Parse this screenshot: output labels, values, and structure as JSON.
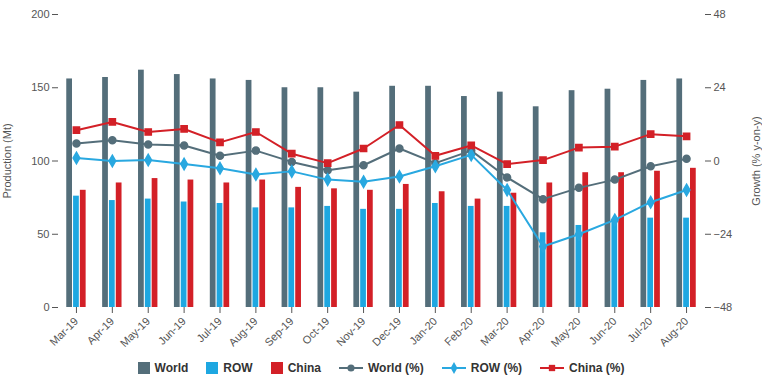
{
  "chart_data": {
    "type": "bar",
    "ylabel": "Production (Mt)",
    "y2label": "Growth (% y-on-y)",
    "categories": [
      "Mar-19",
      "Apr-19",
      "May-19",
      "Jun-19",
      "Jul-19",
      "Aug-19",
      "Sep-19",
      "Oct-19",
      "Nov-19",
      "Dec-19",
      "Jan-20",
      "Feb-20",
      "Mar-20",
      "Apr-20",
      "May-20",
      "Jun-20",
      "Jul-20",
      "Aug-20"
    ],
    "ylim": [
      0,
      200
    ],
    "yticks": [
      0,
      50,
      100,
      150,
      200
    ],
    "y2lim": [
      -48,
      48
    ],
    "y2ticks": [
      -48,
      -24,
      0,
      24,
      48
    ],
    "grid": false,
    "legend": "bottom",
    "series": [
      {
        "name": "World",
        "type": "bar",
        "color": "#546e7a",
        "values": [
          156,
          157,
          162,
          159,
          156,
          155,
          150,
          150,
          147,
          151,
          151,
          144,
          147,
          137,
          148,
          149,
          155,
          156
        ]
      },
      {
        "name": "ROW",
        "type": "bar",
        "color": "#1ea7e1",
        "values": [
          76,
          73,
          74,
          72,
          71,
          68,
          68,
          69,
          67,
          67,
          71,
          69,
          69,
          51,
          56,
          58,
          61,
          61
        ]
      },
      {
        "name": "China",
        "type": "bar",
        "color": "#d32027",
        "values": [
          80,
          85,
          88,
          87,
          85,
          87,
          82,
          81,
          80,
          84,
          79,
          74,
          78,
          85,
          92,
          92,
          93,
          95
        ]
      },
      {
        "name": "World (%)",
        "type": "line",
        "axis": "y2",
        "marker": "circle",
        "color": "#546e7a",
        "values": [
          5.7,
          6.8,
          5.4,
          5.1,
          1.7,
          3.4,
          -0.3,
          -3.0,
          -1.4,
          4.1,
          -0.7,
          3.4,
          -5.4,
          -12.5,
          -8.8,
          -6.1,
          -1.7,
          0.7
        ]
      },
      {
        "name": "ROW (%)",
        "type": "line",
        "axis": "y2",
        "marker": "diamond",
        "color": "#29a8e0",
        "values": [
          1.0,
          0,
          0.3,
          -1.0,
          -2.4,
          -4.4,
          -3.4,
          -6.1,
          -6.8,
          -5.1,
          -1.7,
          2.0,
          -9.5,
          -28,
          -24,
          -19.3,
          -13.5,
          -9.5
        ]
      },
      {
        "name": "China (%)",
        "type": "line",
        "axis": "y2",
        "marker": "square",
        "color": "#d32027",
        "values": [
          10.1,
          12.8,
          9.5,
          10.5,
          6.1,
          9.5,
          2.4,
          -0.7,
          4.1,
          11.8,
          1.7,
          5.1,
          -1.0,
          0.3,
          4.4,
          4.7,
          8.8,
          8.1
        ]
      }
    ]
  }
}
